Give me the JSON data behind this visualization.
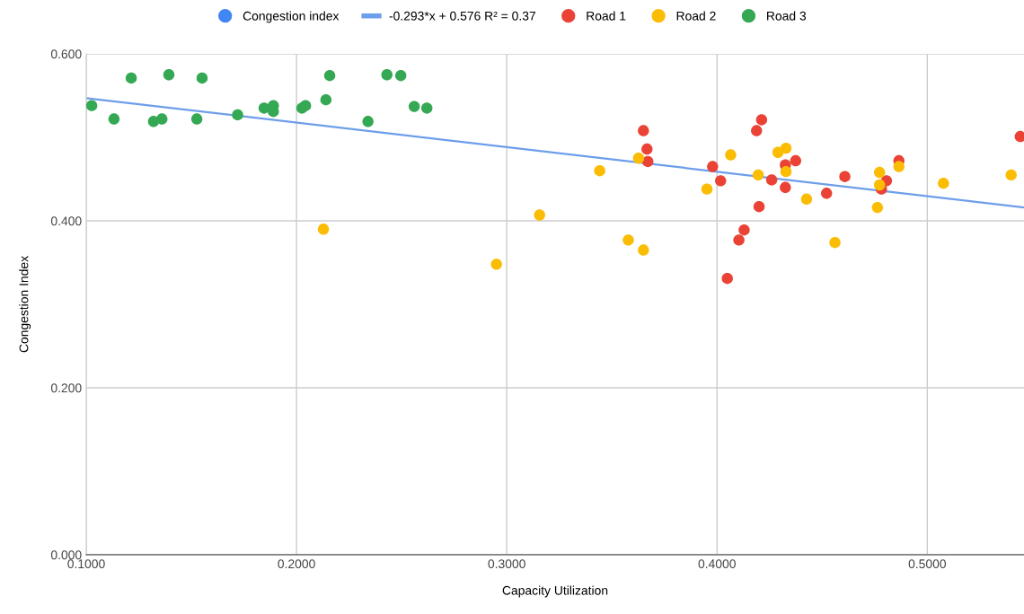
{
  "chart_data": {
    "type": "scatter",
    "xlabel": "Capacity Utilization",
    "ylabel": "Congestion Index",
    "xlim": [
      0.1,
      0.546
    ],
    "ylim": [
      0,
      0.6
    ],
    "xticks": [
      {
        "value": 0.1,
        "label": "0.1000"
      },
      {
        "value": 0.2,
        "label": "0.2000"
      },
      {
        "value": 0.3,
        "label": "0.3000"
      },
      {
        "value": 0.4,
        "label": "0.4000"
      },
      {
        "value": 0.5,
        "label": "0.5000"
      }
    ],
    "yticks": [
      {
        "value": 0,
        "label": "0.000"
      },
      {
        "value": 0.2,
        "label": "0.200"
      },
      {
        "value": 0.4,
        "label": "0.400"
      },
      {
        "value": 0.6,
        "label": "0.600"
      }
    ],
    "grid": true,
    "legend": "top",
    "marker": "circle",
    "series": [
      {
        "name": "Congestion index",
        "color": "#4285f4"
      },
      {
        "name": "-0.293*x + 0.576 R² = 0.37",
        "type": "line",
        "marker": "none",
        "color": "#6d9eeb",
        "x": [
          0.1,
          0.546
        ],
        "values": [
          0.547,
          0.416
        ]
      },
      {
        "name": "Road 1",
        "color": "#ea4335",
        "x": [
          0.365,
          0.3667,
          0.3671,
          0.3979,
          0.4017,
          0.4212,
          0.4188,
          0.426,
          0.4325,
          0.4374,
          0.4325,
          0.42,
          0.4129,
          0.4104,
          0.4049,
          0.4521,
          0.4608,
          0.4782,
          0.4806,
          0.4865,
          0.5442
        ],
        "values": [
          0.508,
          0.486,
          0.471,
          0.465,
          0.448,
          0.521,
          0.508,
          0.449,
          0.467,
          0.472,
          0.44,
          0.417,
          0.389,
          0.377,
          0.331,
          0.433,
          0.453,
          0.438,
          0.448,
          0.472,
          0.501
        ]
      },
      {
        "name": "Road 2",
        "color": "#fbbc04",
        "x": [
          0.2951,
          0.3156,
          0.3442,
          0.3578,
          0.3627,
          0.365,
          0.3952,
          0.4065,
          0.4196,
          0.429,
          0.4328,
          0.4328,
          0.4426,
          0.4561,
          0.4763,
          0.4773,
          0.4773,
          0.4865,
          0.5077,
          0.5399,
          0.2128
        ],
        "values": [
          0.348,
          0.407,
          0.46,
          0.377,
          0.475,
          0.365,
          0.438,
          0.479,
          0.455,
          0.482,
          0.487,
          0.459,
          0.426,
          0.374,
          0.416,
          0.458,
          0.443,
          0.465,
          0.445,
          0.455,
          0.39
        ]
      },
      {
        "name": "Road 3",
        "color": "#34a853",
        "x": [
          0.1026,
          0.1132,
          0.1214,
          0.132,
          0.136,
          0.1393,
          0.1526,
          0.1551,
          0.172,
          0.1846,
          0.189,
          0.189,
          0.2026,
          0.2043,
          0.214,
          0.2158,
          0.234,
          0.243,
          0.2496,
          0.256,
          0.262
        ],
        "values": [
          0.538,
          0.522,
          0.571,
          0.519,
          0.522,
          0.575,
          0.522,
          0.571,
          0.527,
          0.535,
          0.538,
          0.531,
          0.535,
          0.538,
          0.545,
          0.574,
          0.519,
          0.575,
          0.574,
          0.537,
          0.535
        ]
      }
    ]
  }
}
